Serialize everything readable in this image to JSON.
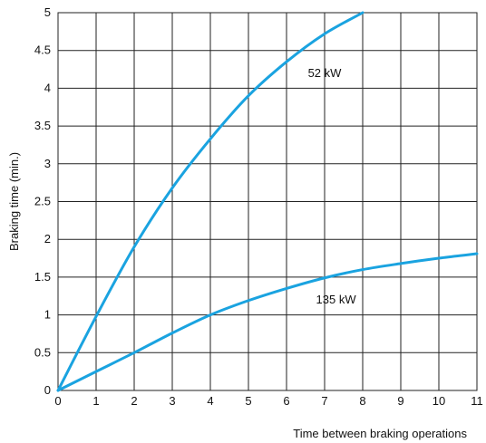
{
  "chart_data": {
    "type": "line",
    "title": "",
    "xlabel": "Time between braking operations",
    "ylabel": "Braking time (min.)",
    "xlim": [
      0,
      11
    ],
    "ylim": [
      0,
      5
    ],
    "x_ticks": [
      "0",
      "1",
      "2",
      "3",
      "4",
      "5",
      "6",
      "7",
      "8",
      "9",
      "10",
      "11"
    ],
    "y_ticks": [
      "0",
      "0.5",
      "1",
      "1.5",
      "2",
      "2.5",
      "3",
      "3.5",
      "4",
      "4.5",
      "5"
    ],
    "grid": true,
    "legend": "none (inline labels)",
    "line_color": "#1aa3e0",
    "series": [
      {
        "name": "52 kW",
        "x": [
          0,
          1,
          2,
          3,
          4,
          5,
          6,
          7,
          8
        ],
        "y": [
          0,
          0.98,
          1.9,
          2.68,
          3.33,
          3.9,
          4.35,
          4.72,
          5.0
        ]
      },
      {
        "name": "135 kW",
        "x": [
          0,
          1,
          2,
          3,
          4,
          5,
          6,
          7,
          8,
          9,
          10,
          11
        ],
        "y": [
          0,
          0.25,
          0.5,
          0.76,
          1.0,
          1.19,
          1.35,
          1.49,
          1.6,
          1.68,
          1.75,
          1.81
        ]
      }
    ],
    "series_labels": [
      {
        "text": "52 kW",
        "at": [
          7.0,
          4.15
        ]
      },
      {
        "text": "135 kW",
        "at": [
          7.3,
          1.15
        ]
      }
    ]
  }
}
